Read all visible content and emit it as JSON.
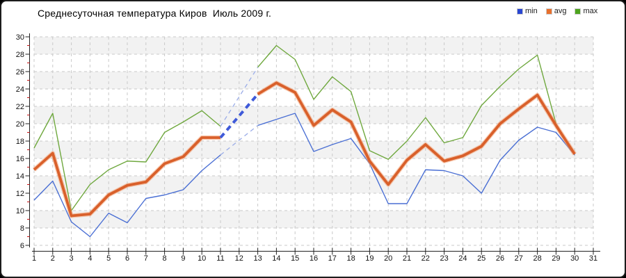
{
  "title": "Среднесуточная температура Киров  Июль 2009 г.",
  "legend": {
    "items": [
      {
        "label": "min",
        "color": "#2946d2"
      },
      {
        "label": "avg",
        "color": "#e8702d"
      },
      {
        "label": "max",
        "color": "#4da41e"
      }
    ]
  },
  "chart_data": {
    "type": "line",
    "title": "Среднесуточная температура Киров  Июль 2009 г.",
    "xlabel": "",
    "ylabel": "",
    "ylim": [
      6,
      30
    ],
    "ytick_step": 2,
    "grid": true,
    "legend_position": "top-right",
    "note": "day 12 has no data (dashed interpolation); day 31 has no data",
    "days": [
      1,
      2,
      3,
      4,
      5,
      6,
      7,
      8,
      9,
      10,
      11,
      12,
      13,
      14,
      15,
      16,
      17,
      18,
      19,
      20,
      21,
      22,
      23,
      24,
      25,
      26,
      27,
      28,
      29,
      30,
      31
    ],
    "series": [
      {
        "name": "min",
        "color": "#4a6fd4",
        "width": 1.4,
        "gap_color": "#9badе8",
        "gap_width": 1.3,
        "gap_dash": "6 5",
        "values": [
          11.2,
          13.4,
          8.7,
          7.0,
          9.7,
          8.6,
          11.4,
          11.8,
          12.4,
          14.6,
          16.4,
          null,
          19.8,
          20.5,
          21.2,
          16.8,
          17.6,
          18.3,
          15.4,
          10.8,
          10.8,
          14.7,
          14.6,
          14.0,
          12.0,
          15.8,
          18.1,
          19.6,
          19.0,
          16.4,
          null
        ]
      },
      {
        "name": "avg",
        "color": "#d9602b",
        "halo": "#f2a173",
        "width": 3.8,
        "gap_color": "#3f5ad9",
        "gap_width": 4,
        "gap_dash": "8 6",
        "values": [
          14.7,
          16.6,
          9.4,
          9.6,
          11.8,
          12.9,
          13.3,
          15.4,
          16.2,
          18.4,
          18.4,
          null,
          23.4,
          24.7,
          23.6,
          19.8,
          21.6,
          20.2,
          15.7,
          13.0,
          15.8,
          17.6,
          15.7,
          16.3,
          17.4,
          20.0,
          21.7,
          23.3,
          19.8,
          16.5,
          null
        ]
      },
      {
        "name": "max",
        "color": "#6fa83e",
        "width": 1.4,
        "gap_color": "#9bade8",
        "gap_width": 1.3,
        "gap_dash": "6 5",
        "values": [
          17.2,
          21.2,
          10.0,
          13.0,
          14.7,
          15.7,
          15.6,
          19.0,
          20.2,
          21.5,
          19.7,
          null,
          26.5,
          29.0,
          27.4,
          22.8,
          25.4,
          23.7,
          16.9,
          15.9,
          18.0,
          20.7,
          17.8,
          18.4,
          22.1,
          24.3,
          26.3,
          27.9,
          20.0,
          16.5,
          null
        ]
      }
    ],
    "grid_color": "#c9c9c9",
    "stripe_color": "#f2f2f2",
    "axis_color": "#222222",
    "minor_tick_color": "#cc1111",
    "label_color": "#111111"
  }
}
